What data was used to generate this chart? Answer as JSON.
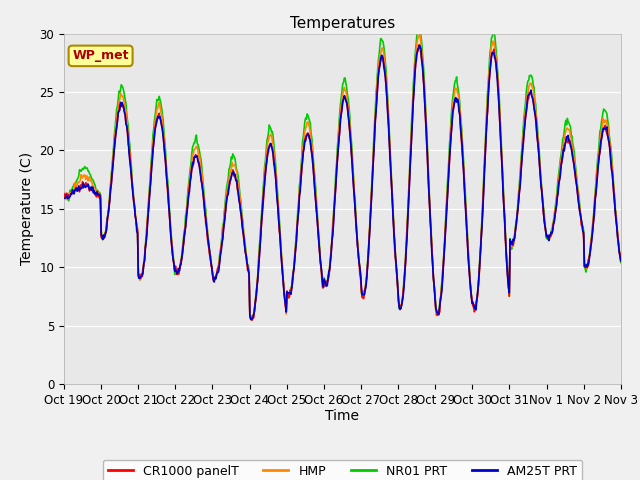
{
  "title": "Temperatures",
  "ylabel": "Temperature (C)",
  "xlabel": "Time",
  "ylim": [
    0,
    30
  ],
  "yticks": [
    0,
    5,
    10,
    15,
    20,
    25,
    30
  ],
  "xtick_labels": [
    "Oct 19",
    "Oct 20",
    "Oct 21",
    "Oct 22",
    "Oct 23",
    "Oct 24",
    "Oct 25",
    "Oct 26",
    "Oct 27",
    "Oct 28",
    "Oct 29",
    "Oct 30",
    "Oct 31",
    "Nov 1",
    "Nov 2",
    "Nov 3"
  ],
  "series": {
    "CR1000 panelT": {
      "color": "#ff0000",
      "lw": 1.2
    },
    "HMP": {
      "color": "#ff8800",
      "lw": 1.2
    },
    "NR01 PRT": {
      "color": "#00cc00",
      "lw": 1.2
    },
    "AM25T PRT": {
      "color": "#0000cc",
      "lw": 1.2
    }
  },
  "wp_met_label": "WP_met",
  "wp_met_facecolor": "#ffff99",
  "wp_met_edgecolor": "#aa8800",
  "plot_bg_color": "#e8e8e8",
  "fig_bg_color": "#f0f0f0",
  "title_fontsize": 11,
  "axis_label_fontsize": 10,
  "tick_fontsize": 8.5,
  "legend_fontsize": 9,
  "day_peaks": [
    17.0,
    24.0,
    23.0,
    19.5,
    18.0,
    20.5,
    21.5,
    24.5,
    28.0,
    29.0,
    24.5,
    28.5,
    25.0,
    21.0,
    22.0,
    10.0
  ],
  "day_mins": [
    16.0,
    12.5,
    9.0,
    9.5,
    9.0,
    5.5,
    7.5,
    8.5,
    7.5,
    6.5,
    6.0,
    6.5,
    12.0,
    12.5,
    10.0,
    9.5
  ]
}
